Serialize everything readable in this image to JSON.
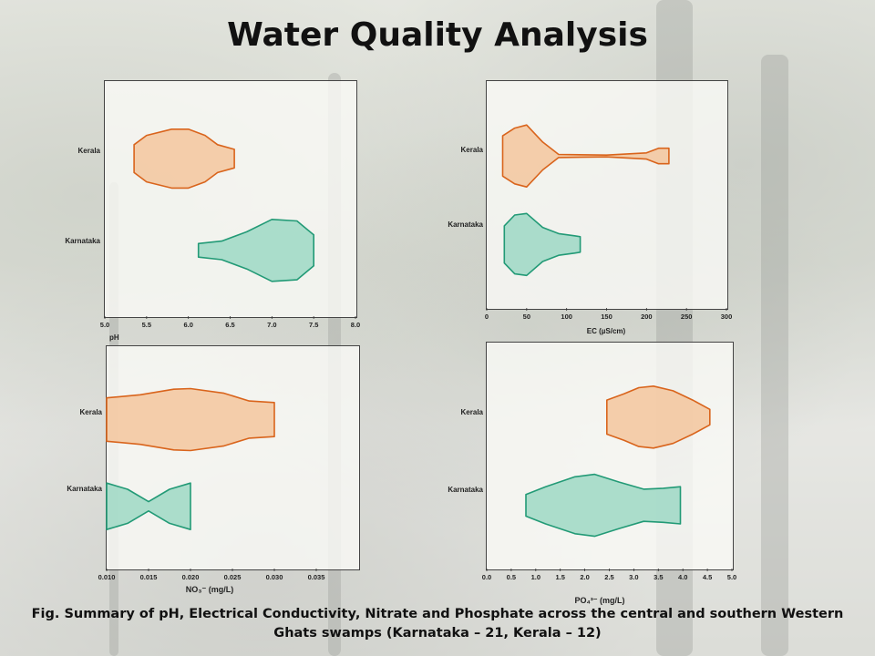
{
  "slide": {
    "title": "Water Quality Analysis",
    "caption_line1": "Fig. Summary of pH, Electrical Conductivity, Nitrate and Phosphate across the central and southern Western",
    "caption_line2": "Ghats swamps (Karnataka – 21, Kerala – 12)"
  },
  "colors": {
    "Kerala": {
      "fill": "#f3c59d",
      "stroke": "#d9641c"
    },
    "Karnataka": {
      "fill": "#9ed8c4",
      "stroke": "#229a76"
    }
  },
  "chart_data": [
    {
      "type": "violin",
      "id": "ph",
      "xlabel": "pH",
      "xlim": [
        5.0,
        8.0
      ],
      "ticks": [
        5.0,
        5.5,
        6.0,
        6.5,
        7.0,
        7.5,
        8.0
      ],
      "tick_labels": [
        "5.0",
        "5.5",
        "6.0",
        "6.5",
        "7.0",
        "7.5",
        "8.0"
      ],
      "categories": [
        "Kerala",
        "Karnataka"
      ],
      "series": [
        {
          "name": "Kerala",
          "profile": [
            [
              5.35,
              0.45
            ],
            [
              5.5,
              0.75
            ],
            [
              5.8,
              0.95
            ],
            [
              6.0,
              0.95
            ],
            [
              6.2,
              0.75
            ],
            [
              6.35,
              0.45
            ],
            [
              6.55,
              0.3
            ]
          ]
        },
        {
          "name": "Karnataka",
          "profile": [
            [
              6.12,
              0.22
            ],
            [
              6.4,
              0.3
            ],
            [
              6.7,
              0.6
            ],
            [
              7.0,
              1.0
            ],
            [
              7.3,
              0.95
            ],
            [
              7.5,
              0.5
            ]
          ]
        }
      ]
    },
    {
      "type": "violin",
      "id": "ec",
      "xlabel": "EC (µS/cm)",
      "xlim": [
        0,
        300
      ],
      "ticks": [
        0,
        50,
        100,
        150,
        200,
        250,
        300
      ],
      "tick_labels": [
        "0",
        "50",
        "100",
        "150",
        "200",
        "250",
        "300"
      ],
      "categories": [
        "Kerala",
        "Karnataka"
      ],
      "series": [
        {
          "name": "Kerala",
          "profile": [
            [
              20,
              0.65
            ],
            [
              35,
              0.9
            ],
            [
              50,
              1.0
            ],
            [
              70,
              0.45
            ],
            [
              90,
              0.05
            ],
            [
              150,
              0.03
            ],
            [
              200,
              0.1
            ],
            [
              215,
              0.25
            ],
            [
              228,
              0.25
            ]
          ]
        },
        {
          "name": "Karnataka",
          "profile": [
            [
              22,
              0.6
            ],
            [
              35,
              0.95
            ],
            [
              50,
              1.0
            ],
            [
              70,
              0.55
            ],
            [
              90,
              0.35
            ],
            [
              110,
              0.28
            ],
            [
              117,
              0.25
            ]
          ]
        }
      ]
    },
    {
      "type": "violin",
      "id": "no3",
      "xlabel": "NO₃⁻  (mg/L)",
      "xlim": [
        0.01,
        0.04
      ],
      "ticks": [
        0.01,
        0.015,
        0.02,
        0.025,
        0.03,
        0.035
      ],
      "tick_labels": [
        "0.010",
        "0.015",
        "0.020",
        "0.025",
        "0.030",
        "0.035"
      ],
      "categories": [
        "Kerala",
        "Karnataka"
      ],
      "series": [
        {
          "name": "Kerala",
          "profile": [
            [
              0.01,
              0.7
            ],
            [
              0.014,
              0.8
            ],
            [
              0.018,
              0.98
            ],
            [
              0.02,
              1.0
            ],
            [
              0.024,
              0.85
            ],
            [
              0.027,
              0.6
            ],
            [
              0.03,
              0.55
            ]
          ]
        },
        {
          "name": "Karnataka",
          "profile": [
            [
              0.01,
              0.75
            ],
            [
              0.0125,
              0.55
            ],
            [
              0.015,
              0.15
            ],
            [
              0.0175,
              0.55
            ],
            [
              0.02,
              0.75
            ]
          ]
        }
      ]
    },
    {
      "type": "violin",
      "id": "po4",
      "xlabel": "PO₄³⁻  (mg/L)",
      "xlim": [
        0.0,
        5.0
      ],
      "ticks": [
        0.0,
        0.5,
        1.0,
        1.5,
        2.0,
        2.5,
        3.0,
        3.5,
        4.0,
        4.5,
        5.0
      ],
      "tick_labels": [
        "0.0",
        "0.5",
        "1.0",
        "1.5",
        "2.0",
        "2.5",
        "3.0",
        "3.5",
        "4.0",
        "4.5",
        "5.0"
      ],
      "categories": [
        "Kerala",
        "Karnataka"
      ],
      "series": [
        {
          "name": "Kerala",
          "profile": [
            [
              2.45,
              0.55
            ],
            [
              2.8,
              0.75
            ],
            [
              3.1,
              0.95
            ],
            [
              3.4,
              1.0
            ],
            [
              3.8,
              0.85
            ],
            [
              4.2,
              0.55
            ],
            [
              4.55,
              0.25
            ]
          ]
        },
        {
          "name": "Karnataka",
          "profile": [
            [
              0.8,
              0.35
            ],
            [
              1.2,
              0.6
            ],
            [
              1.8,
              0.92
            ],
            [
              2.2,
              1.0
            ],
            [
              2.7,
              0.75
            ],
            [
              3.2,
              0.52
            ],
            [
              3.6,
              0.55
            ],
            [
              3.95,
              0.6
            ]
          ]
        }
      ]
    }
  ]
}
